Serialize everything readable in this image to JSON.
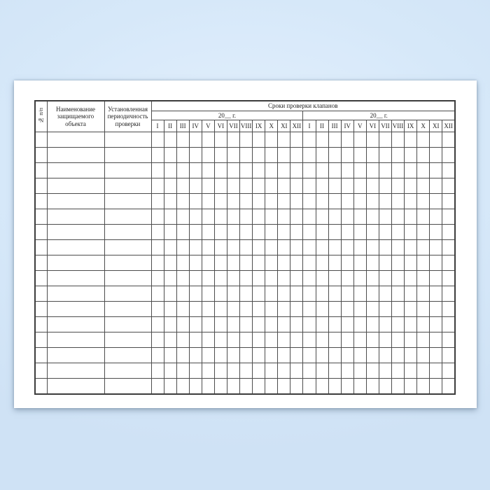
{
  "page": {
    "background_color": "#d6e8f9",
    "paper_color": "#ffffff",
    "line_color": "#4c4c4c"
  },
  "table": {
    "columns": {
      "row_number": "№ п/п",
      "object_name": "Наименование защищаемого объекта",
      "periodicity": "Установленная периодичность проверки"
    },
    "check_dates_header": "Сроки проверки клапанов",
    "year_groups": [
      {
        "label": "20__ г."
      },
      {
        "label": "20__ г."
      }
    ],
    "months": [
      "I",
      "II",
      "III",
      "IV",
      "V",
      "VI",
      "VII",
      "VIII",
      "IX",
      "X",
      "XI",
      "XII"
    ],
    "data_row_count": 17,
    "body_cell_value": ""
  }
}
